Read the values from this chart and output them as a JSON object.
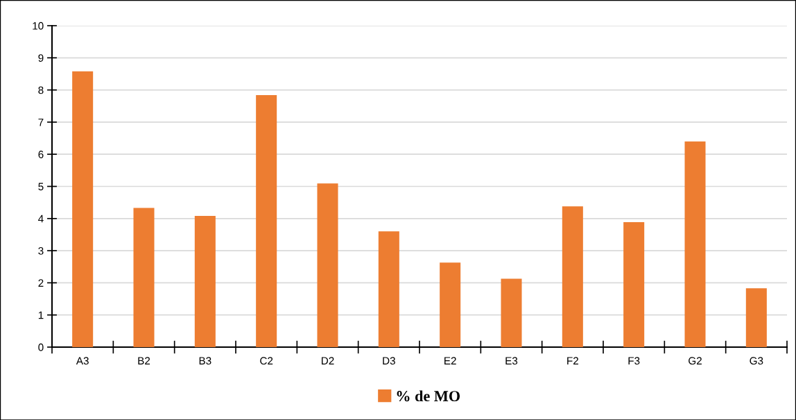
{
  "chart_data": {
    "type": "bar",
    "categories": [
      "A3",
      "B2",
      "B3",
      "C2",
      "D2",
      "D3",
      "E2",
      "E3",
      "F2",
      "F3",
      "G2",
      "G3"
    ],
    "series": [
      {
        "name": "% de MO",
        "color": "#ed7d31",
        "values": [
          8.58,
          4.33,
          4.08,
          7.84,
          5.09,
          3.6,
          2.63,
          2.13,
          4.38,
          3.89,
          6.4,
          1.83
        ]
      }
    ],
    "ylim": [
      0,
      10
    ],
    "yticks": [
      0,
      1,
      2,
      3,
      4,
      5,
      6,
      7,
      8,
      9,
      10
    ],
    "grid": "y",
    "legend": "bottom"
  }
}
